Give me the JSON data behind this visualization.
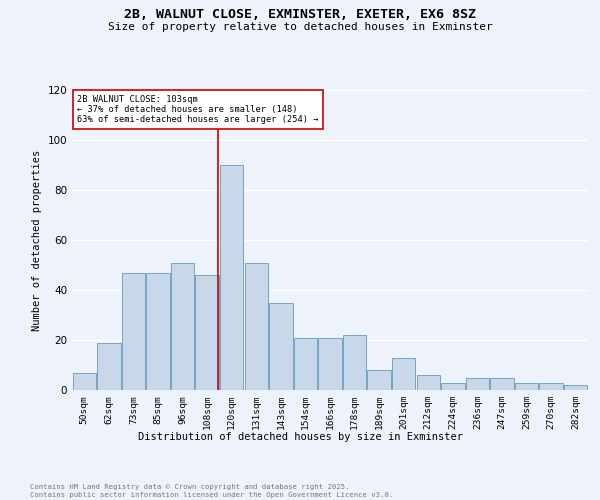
{
  "title_line1": "2B, WALNUT CLOSE, EXMINSTER, EXETER, EX6 8SZ",
  "title_line2": "Size of property relative to detached houses in Exminster",
  "xlabel": "Distribution of detached houses by size in Exminster",
  "ylabel": "Number of detached properties",
  "bar_color": "#c8d8ea",
  "bar_edge_color": "#6699bb",
  "background_color": "#eef2fb",
  "grid_color": "#ffffff",
  "categories": [
    "50sqm",
    "62sqm",
    "73sqm",
    "85sqm",
    "96sqm",
    "108sqm",
    "120sqm",
    "131sqm",
    "143sqm",
    "154sqm",
    "166sqm",
    "178sqm",
    "189sqm",
    "201sqm",
    "212sqm",
    "224sqm",
    "236sqm",
    "247sqm",
    "259sqm",
    "270sqm",
    "282sqm"
  ],
  "values": [
    7,
    19,
    47,
    47,
    51,
    46,
    90,
    51,
    35,
    21,
    21,
    22,
    8,
    13,
    6,
    3,
    5,
    5,
    3,
    3,
    2
  ],
  "vline_x": 5.43,
  "vline_color": "#cc0000",
  "annotation_title": "2B WALNUT CLOSE: 103sqm",
  "annotation_line1": "← 37% of detached houses are smaller (148)",
  "annotation_line2": "63% of semi-detached houses are larger (254) →",
  "annotation_box_color": "#ffffff",
  "annotation_box_edge": "#cc0000",
  "ylim": [
    0,
    120
  ],
  "yticks": [
    0,
    20,
    40,
    60,
    80,
    100,
    120
  ],
  "footnote_line1": "Contains HM Land Registry data © Crown copyright and database right 2025.",
  "footnote_line2": "Contains public sector information licensed under the Open Government Licence v3.0."
}
